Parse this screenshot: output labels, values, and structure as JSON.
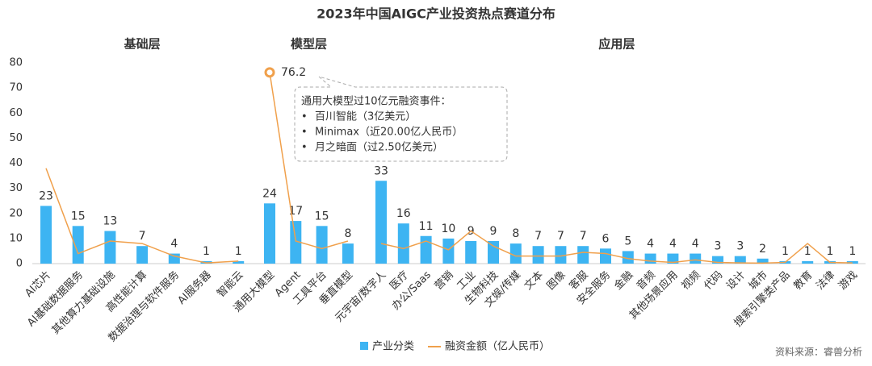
{
  "chart_data": {
    "type": "bar-line",
    "title": "2023年中国AIGC产业投资热点赛道分布",
    "group_labels": [
      "基础层",
      "模型层",
      "应用层"
    ],
    "categories": [
      "AI芯片",
      "AI基础数据服务",
      "其他算力基础设施",
      "高性能计算",
      "数据治理与软件服务",
      "AI服务器",
      "智能云",
      null,
      "通用大模型",
      "Agent",
      "工具平台",
      "垂直模型",
      null,
      "元宇宙/数字人",
      "医疗",
      "办公/Saas",
      "营销",
      "工业",
      "生物科技",
      "文娱/传媒",
      "文本",
      "图像",
      "客服",
      "安全服务",
      "金融",
      "音频",
      "其他场景应用",
      "视频",
      "代码",
      "设计",
      "城市",
      "搜索引擎类产品",
      "教育",
      "法律",
      "游戏"
    ],
    "series": [
      {
        "name": "产业分类",
        "type": "bar",
        "color": "#3db4f2",
        "values": [
          23,
          15,
          13,
          7,
          4,
          1,
          1,
          null,
          24,
          17,
          15,
          8,
          null,
          33,
          16,
          11,
          10,
          9,
          9,
          8,
          7,
          7,
          7,
          6,
          5,
          4,
          4,
          4,
          3,
          3,
          2,
          1,
          1,
          1,
          1
        ]
      },
      {
        "name": "融资金额（亿人民币）",
        "type": "line",
        "color": "#f0a04b",
        "values": [
          38,
          4,
          9,
          8,
          3,
          0.3,
          1,
          null,
          76.2,
          9,
          6,
          9,
          null,
          8,
          6,
          9,
          5.5,
          13,
          7,
          3,
          3,
          3,
          4.5,
          4,
          2,
          1,
          0.5,
          1.5,
          0.5,
          0.3,
          0.2,
          0.5,
          8,
          0.5,
          0.3
        ]
      }
    ],
    "highlight_index": 8,
    "annotation": {
      "title": "通用大模型过10亿元融资事件：",
      "items": [
        "百川智能（3亿美元）",
        "Minimax（近20.00亿人民币）",
        "月之暗面（过2.50亿美元）"
      ]
    },
    "ylim": [
      0,
      80
    ],
    "yticks": [
      0,
      10,
      20,
      30,
      40,
      50,
      60,
      70,
      80
    ],
    "source": "资料来源：睿兽分析"
  }
}
